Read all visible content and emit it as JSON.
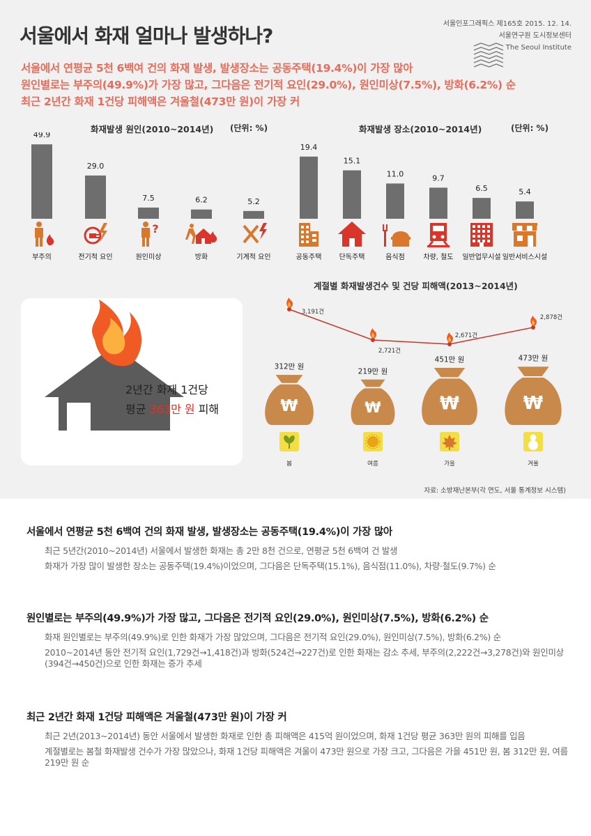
{
  "header": {
    "title": "서울에서 화재 얼마나 발생하나?",
    "publication": "서울인포그래픽스 제165호 2015. 12. 14.",
    "institute_ko": "서울연구원 도시정보센터",
    "institute_en": "The Seoul Institute"
  },
  "summary": [
    "서울에서 연평균 5천 6백여 건의 화재 발생, 발생장소는 공동주택(19.4%)이 가장 많아",
    "원인별로는 부주의(49.9%)가 가장 많고, 그다음은 전기적 요인(29.0%), 원인미상(7.5%), 방화(6.2%) 순",
    "최근 2년간 화재 1건당 피해액은 겨울철(473만 원)이 가장 커"
  ],
  "chart_data": [
    {
      "type": "bar",
      "title": "화재발생 원인(2010~2014년)",
      "unit": "(단위: %)",
      "categories": [
        "부주의",
        "전기적 요인",
        "원인미상",
        "방화",
        "기계적 요인"
      ],
      "values": [
        49.9,
        29.0,
        7.5,
        6.2,
        5.2
      ],
      "labels": [
        "49.9",
        "29.0",
        "7.5",
        "6.2",
        "5.2"
      ],
      "icons": [
        "person-fire-icon",
        "plug-lightning-icon",
        "person-question-icon",
        "arson-house-icon",
        "tools-lightning-icon"
      ],
      "ylim": [
        0,
        50
      ]
    },
    {
      "type": "bar",
      "title": "화재발생 장소(2010~2014년)",
      "unit": "(단위: %)",
      "categories": [
        "공동주택",
        "단독주택",
        "음식점",
        "차량, 철도",
        "일반업무시설",
        "일반서비스시설"
      ],
      "values": [
        19.4,
        15.1,
        11.0,
        9.7,
        6.5,
        5.4
      ],
      "labels": [
        "19.4",
        "15.1",
        "11.0",
        "9.7",
        "6.5",
        "5.4"
      ],
      "icons": [
        "apartment-icon",
        "house-icon",
        "restaurant-icon",
        "train-icon",
        "office-building-icon",
        "shop-icon"
      ],
      "ylim": [
        0,
        20
      ]
    },
    {
      "type": "line",
      "title": "계절별 화재발생건수 및 건당 피해액(2013~2014년)",
      "categories": [
        "봄",
        "여름",
        "가을",
        "겨울"
      ],
      "fire_counts": [
        3191,
        2721,
        2671,
        2878
      ],
      "fire_count_labels": [
        "3,191건",
        "2,721건",
        "2,671건",
        "2,878건"
      ],
      "damage_per_case": [
        312,
        219,
        451,
        473
      ],
      "damage_labels": [
        "312만 원",
        "219만 원",
        "451만 원",
        "473만 원"
      ],
      "season_icons": [
        "sprout-icon",
        "sun-icon",
        "maple-leaf-icon",
        "snowman-icon"
      ]
    }
  ],
  "house_card": {
    "line1": "2년간 화재 1건당",
    "prefix": "평균 ",
    "amount": "363만 원",
    "suffix": " 피해"
  },
  "source": "자료: 소방재난본부(각 연도, 서울 통계정보 시스템)",
  "sections": [
    {
      "heading": "서울에서 연평균 5천 6백여 건의 화재 발생, 발생장소는 공동주택(19.4%)이 가장 많아",
      "paragraphs": [
        "최근 5년간(2010~2014년) 서울에서 발생한 화재는 총 2만 8천 건으로, 연평균 5천 6백여 건 발생",
        "화재가 가장 많이 발생한 장소는 공동주택(19.4%)이었으며, 그다음은 단독주택(15.1%), 음식점(11.0%), 차량·철도(9.7%) 순"
      ]
    },
    {
      "heading": "원인별로는 부주의(49.9%)가 가장 많고, 그다음은 전기적 요인(29.0%), 원인미상(7.5%), 방화(6.2%) 순",
      "paragraphs": [
        "화재 원인별로는 부주의(49.9%)로 인한 화재가 가장 많았으며, 그다음은 전기적 요인(29.0%), 원인미상(7.5%), 방화(6.2%) 순",
        "2010~2014년 동안 전기적 요인(1,729건→1,418건)과 방화(524건→227건)로 인한 화재는 감소 추세, 부주의(2,222건→3,278건)와 원인미상(394건→450건)으로 인한 화재는 증가 추세"
      ]
    },
    {
      "heading": "최근 2년간 화재 1건당 피해액은 겨울철(473만 원)이 가장 커",
      "paragraphs": [
        "최근 2년(2013~2014년) 동안 서울에서 발생한 화재로 인한 총 피해액은 415억 원이었으며, 화재 1건당 평균 363만 원의 피해를 입음",
        "계절별로는 봄철 화재발생 건수가 가장 많았으나, 화재 1건당 피해액은 겨울이 473만 원으로 가장 크고, 그다음은 가을 451만 원, 봄 312만 원, 여름 219만 원 순"
      ]
    }
  ],
  "colors": {
    "bar": "#6e6e6e",
    "icon_orange": "#d9782d",
    "icon_red": "#d9362b",
    "summary_text": "#e46d5b",
    "money_bag": "#c8894a",
    "season_icon_bg": "#f3df45",
    "line": "#c0392b"
  }
}
